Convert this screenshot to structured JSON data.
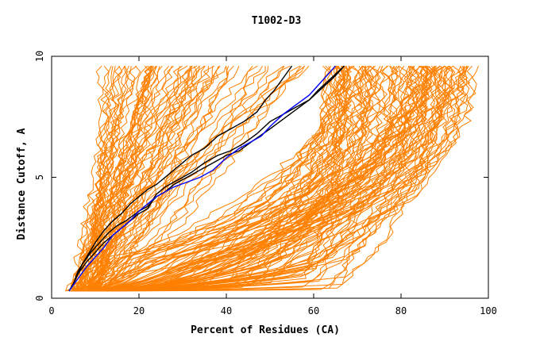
{
  "chart_data": {
    "type": "line",
    "title": "T1002-D3",
    "xlabel": "Percent of Residues (CA)",
    "ylabel": "Distance Cutoff, A",
    "xlim": [
      0,
      100
    ],
    "ylim": [
      0,
      10
    ],
    "xticks": [
      0,
      20,
      40,
      60,
      80,
      100
    ],
    "yticks": [
      0,
      5,
      10
    ],
    "colors": {
      "background": "#ffffff",
      "orange": "#ff8000",
      "blue": "#0000ff",
      "black": "#000000"
    },
    "series": [
      {
        "name": "black-1",
        "color": "#000000",
        "points": [
          [
            4,
            0.3
          ],
          [
            5,
            0.6
          ],
          [
            6,
            1.0
          ],
          [
            7,
            1.4
          ],
          [
            9,
            1.9
          ],
          [
            11,
            2.3
          ],
          [
            13,
            2.7
          ],
          [
            15,
            3.0
          ],
          [
            17,
            3.2
          ],
          [
            20,
            3.6
          ],
          [
            22,
            3.8
          ],
          [
            24,
            4.2
          ],
          [
            26,
            4.4
          ],
          [
            28,
            4.7
          ],
          [
            31,
            5.0
          ],
          [
            34,
            5.3
          ],
          [
            37,
            5.6
          ],
          [
            40,
            5.9
          ],
          [
            43,
            6.1
          ],
          [
            46,
            6.5
          ],
          [
            50,
            7.0
          ],
          [
            53,
            7.4
          ],
          [
            56,
            7.8
          ],
          [
            59,
            8.2
          ],
          [
            62,
            8.7
          ],
          [
            65,
            9.2
          ],
          [
            67,
            9.6
          ]
        ]
      },
      {
        "name": "black-2",
        "color": "#000000",
        "points": [
          [
            4,
            0.3
          ],
          [
            5,
            0.6
          ],
          [
            6,
            1.1
          ],
          [
            8,
            1.7
          ],
          [
            10,
            2.3
          ],
          [
            12,
            2.8
          ],
          [
            14,
            3.2
          ],
          [
            16,
            3.5
          ],
          [
            18,
            3.9
          ],
          [
            20,
            4.2
          ],
          [
            22,
            4.5
          ],
          [
            24,
            4.7
          ],
          [
            26,
            5.0
          ],
          [
            28,
            5.3
          ],
          [
            30,
            5.6
          ],
          [
            32,
            5.9
          ],
          [
            35,
            6.2
          ],
          [
            38,
            6.7
          ],
          [
            41,
            7.0
          ],
          [
            44,
            7.3
          ],
          [
            47,
            7.7
          ],
          [
            49,
            8.2
          ],
          [
            51,
            8.6
          ],
          [
            53,
            9.1
          ],
          [
            55,
            9.6
          ]
        ]
      },
      {
        "name": "black-3",
        "color": "#000000",
        "points": [
          [
            4,
            0.3
          ],
          [
            5,
            0.6
          ],
          [
            6,
            1.0
          ],
          [
            8,
            1.5
          ],
          [
            10,
            1.9
          ],
          [
            12,
            2.3
          ],
          [
            14,
            2.6
          ],
          [
            16,
            2.9
          ],
          [
            18,
            3.2
          ],
          [
            20,
            3.5
          ],
          [
            22,
            3.7
          ],
          [
            24,
            4.3
          ],
          [
            26,
            4.6
          ],
          [
            29,
            4.9
          ],
          [
            32,
            5.2
          ],
          [
            35,
            5.6
          ],
          [
            38,
            5.9
          ],
          [
            41,
            6.1
          ],
          [
            44,
            6.4
          ],
          [
            47,
            6.8
          ],
          [
            50,
            7.3
          ],
          [
            53,
            7.6
          ],
          [
            56,
            7.9
          ],
          [
            59,
            8.2
          ],
          [
            61,
            8.6
          ],
          [
            64,
            9.1
          ],
          [
            67,
            9.6
          ]
        ]
      },
      {
        "name": "blue",
        "color": "#0000ff",
        "points": [
          [
            4,
            0.3
          ],
          [
            6,
            0.8
          ],
          [
            8,
            1.3
          ],
          [
            10,
            1.7
          ],
          [
            12,
            2.1
          ],
          [
            14,
            2.6
          ],
          [
            16,
            2.9
          ],
          [
            18,
            3.2
          ],
          [
            20,
            3.6
          ],
          [
            22,
            3.9
          ],
          [
            24,
            4.2
          ],
          [
            26,
            4.4
          ],
          [
            28,
            4.6
          ],
          [
            31,
            4.8
          ],
          [
            34,
            5.0
          ],
          [
            37,
            5.3
          ],
          [
            40,
            5.8
          ],
          [
            43,
            6.2
          ],
          [
            46,
            6.5
          ],
          [
            48,
            6.7
          ],
          [
            50,
            7.1
          ],
          [
            53,
            7.6
          ],
          [
            56,
            8.0
          ],
          [
            59,
            8.4
          ],
          [
            61,
            8.8
          ],
          [
            63,
            9.2
          ],
          [
            65,
            9.6
          ]
        ]
      }
    ],
    "orange_bundle": {
      "color": "#ff8000",
      "start_x_range": [
        4,
        11
      ],
      "end_x_range": [
        11,
        98
      ],
      "bulk_near_zero_x_range": [
        10,
        68
      ],
      "y_top": 9.6
    }
  }
}
